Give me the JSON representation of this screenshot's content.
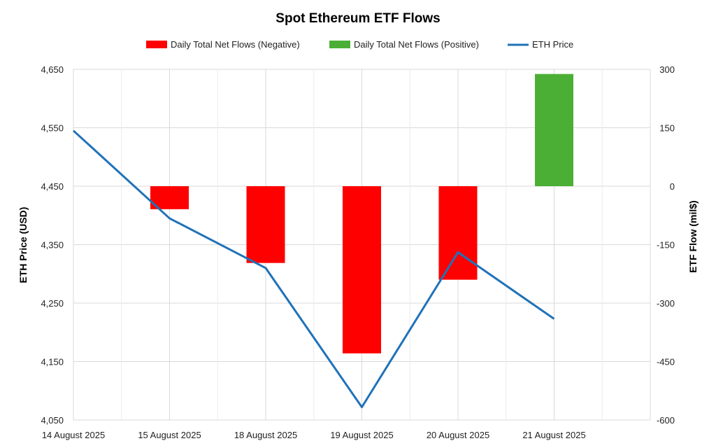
{
  "chart_data": {
    "type": "bar+line",
    "title": "Spot Ethereum ETF Flows",
    "categories": [
      "14 August 2025",
      "15 August 2025",
      "18 August 2025",
      "19 August 2025",
      "20 August 2025",
      "21 August 2025"
    ],
    "series": [
      {
        "name": "Daily Total Net Flows (Negative)",
        "type": "bar",
        "axis": "right",
        "color": "#ff0000",
        "values": [
          null,
          -59,
          -197,
          -429,
          -240,
          null
        ]
      },
      {
        "name": "Daily Total Net Flows (Positive)",
        "type": "bar",
        "axis": "right",
        "color": "#4caf35",
        "values": [
          null,
          null,
          null,
          null,
          null,
          288
        ]
      },
      {
        "name": "ETH Price",
        "type": "line",
        "axis": "left",
        "color": "#1f72b8",
        "values": [
          4545,
          4395,
          4310,
          4072,
          4337,
          4223
        ]
      }
    ],
    "y_left": {
      "label": "ETH Price (USD)",
      "min": 4050,
      "max": 4650,
      "ticks": [
        "4,650",
        "4,550",
        "4,450",
        "4,350",
        "4,250",
        "4,150",
        "4,050"
      ],
      "tick_values": [
        4650,
        4550,
        4450,
        4350,
        4250,
        4150,
        4050
      ]
    },
    "y_right": {
      "label": "ETF Flow (mil$)",
      "min": -600,
      "max": 300,
      "ticks": [
        "300",
        "150",
        "0",
        "-150",
        "-300",
        "-450",
        "-600"
      ],
      "tick_values": [
        300,
        150,
        0,
        -150,
        -300,
        -450,
        -600
      ]
    },
    "grid": true,
    "legend_position": "top"
  }
}
